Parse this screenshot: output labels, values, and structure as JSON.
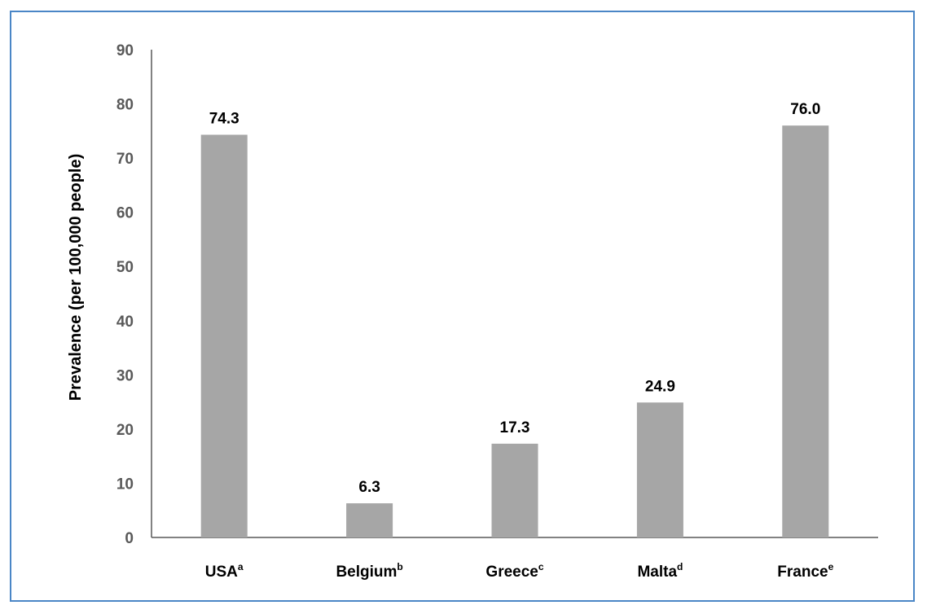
{
  "chart_data": {
    "type": "bar",
    "ylabel": "Prevalence (per 100,000 people)",
    "ylim": [
      0,
      90
    ],
    "yticks": [
      0,
      10,
      20,
      30,
      40,
      50,
      60,
      70,
      80,
      90
    ],
    "categories": [
      "USA",
      "Belgium",
      "Greece",
      "Malta",
      "France"
    ],
    "category_superscripts": [
      "a",
      "b",
      "c",
      "d",
      "e"
    ],
    "values": [
      74.3,
      6.3,
      17.3,
      24.9,
      76.0
    ],
    "value_labels": [
      "74.3",
      "6.3",
      "17.3",
      "24.9",
      "76.0"
    ],
    "bar_color": "#a6a6a6",
    "axis_color": "#595959",
    "grid": false,
    "legend": "none"
  }
}
